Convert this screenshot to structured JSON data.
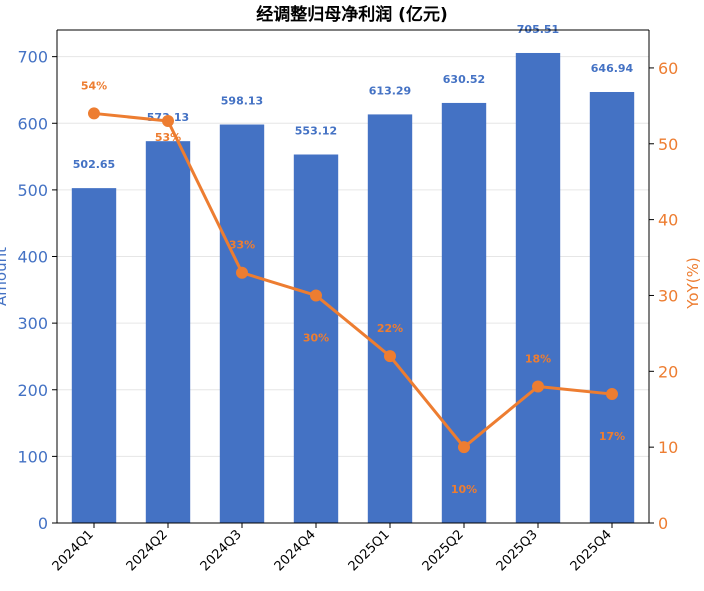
{
  "chart_data": {
    "type": "bar+line",
    "title": "经调整归母净利润 (亿元)",
    "categories": [
      "2024Q1",
      "2024Q2",
      "2024Q3",
      "2024Q4",
      "2025Q1",
      "2025Q2",
      "2025Q3",
      "2025Q4"
    ],
    "series": [
      {
        "kind": "bar",
        "axis": "left",
        "values": [
          502.65,
          573.13,
          598.13,
          553.12,
          613.29,
          630.52,
          705.51,
          646.94
        ],
        "labels": [
          "502.65",
          "573.13",
          "598.13",
          "553.12",
          "613.29",
          "630.52",
          "705.51",
          "646.94"
        ],
        "color": "#4472c4"
      },
      {
        "kind": "line",
        "axis": "right",
        "values": [
          54,
          53,
          33,
          30,
          22,
          10,
          18,
          17
        ],
        "labels": [
          "54%",
          "53%",
          "33%",
          "30%",
          "22%",
          "10%",
          "18%",
          "17%"
        ],
        "color": "#ed7d31"
      }
    ],
    "ylabel_left": "Amount",
    "ylabel_right": "YoY(%)",
    "ylim_left": [
      0,
      740
    ],
    "ylim_right": [
      0,
      65
    ],
    "yticks_left": [
      "0",
      "100",
      "200",
      "300",
      "400",
      "500",
      "600",
      "700"
    ],
    "yticks_right": [
      "0",
      "10",
      "20",
      "30",
      "40",
      "50",
      "60"
    ],
    "grid": true,
    "left_axis_color": "#4472c4",
    "right_axis_color": "#ed7d31"
  }
}
